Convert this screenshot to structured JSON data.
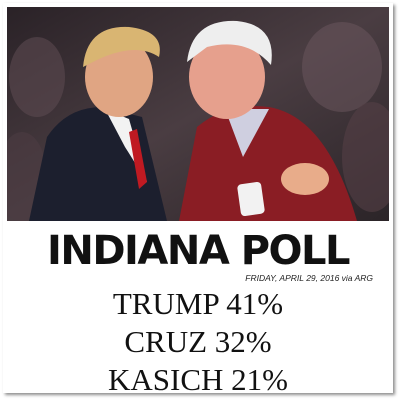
{
  "photo": {
    "description_icon": "photo-two-men-embracing"
  },
  "poll": {
    "title": "INDIANA POLL",
    "date_line": "FRIDAY, APRIL 29, 2016 via ARG",
    "results": [
      {
        "label": "TRUMP 41%"
      },
      {
        "label": "CRUZ 32%"
      },
      {
        "label": "KASICH 21%"
      }
    ]
  },
  "colors": {
    "background": "#ffffff",
    "text": "#111111",
    "suit": "#1c1f2e",
    "sweater": "#8a1d24",
    "tie": "#c01a22",
    "crowd": "#3a2f33"
  }
}
